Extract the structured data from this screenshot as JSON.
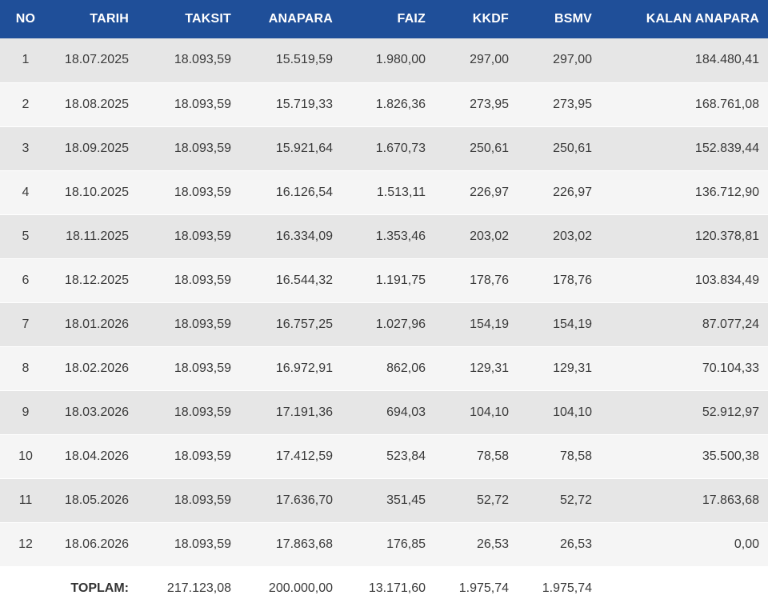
{
  "headers": {
    "no": "NO",
    "tarih": "TARIH",
    "taksit": "TAKSIT",
    "anapara": "ANAPARA",
    "faiz": "FAIZ",
    "kkdf": "KKDF",
    "bsmv": "BSMV",
    "kalan": "KALAN ANAPARA"
  },
  "rows": [
    {
      "no": "1",
      "tarih": "18.07.2025",
      "taksit": "18.093,59",
      "anapara": "15.519,59",
      "faiz": "1.980,00",
      "kkdf": "297,00",
      "bsmv": "297,00",
      "kalan": "184.480,41"
    },
    {
      "no": "2",
      "tarih": "18.08.2025",
      "taksit": "18.093,59",
      "anapara": "15.719,33",
      "faiz": "1.826,36",
      "kkdf": "273,95",
      "bsmv": "273,95",
      "kalan": "168.761,08"
    },
    {
      "no": "3",
      "tarih": "18.09.2025",
      "taksit": "18.093,59",
      "anapara": "15.921,64",
      "faiz": "1.670,73",
      "kkdf": "250,61",
      "bsmv": "250,61",
      "kalan": "152.839,44"
    },
    {
      "no": "4",
      "tarih": "18.10.2025",
      "taksit": "18.093,59",
      "anapara": "16.126,54",
      "faiz": "1.513,11",
      "kkdf": "226,97",
      "bsmv": "226,97",
      "kalan": "136.712,90"
    },
    {
      "no": "5",
      "tarih": "18.11.2025",
      "taksit": "18.093,59",
      "anapara": "16.334,09",
      "faiz": "1.353,46",
      "kkdf": "203,02",
      "bsmv": "203,02",
      "kalan": "120.378,81"
    },
    {
      "no": "6",
      "tarih": "18.12.2025",
      "taksit": "18.093,59",
      "anapara": "16.544,32",
      "faiz": "1.191,75",
      "kkdf": "178,76",
      "bsmv": "178,76",
      "kalan": "103.834,49"
    },
    {
      "no": "7",
      "tarih": "18.01.2026",
      "taksit": "18.093,59",
      "anapara": "16.757,25",
      "faiz": "1.027,96",
      "kkdf": "154,19",
      "bsmv": "154,19",
      "kalan": "87.077,24"
    },
    {
      "no": "8",
      "tarih": "18.02.2026",
      "taksit": "18.093,59",
      "anapara": "16.972,91",
      "faiz": "862,06",
      "kkdf": "129,31",
      "bsmv": "129,31",
      "kalan": "70.104,33"
    },
    {
      "no": "9",
      "tarih": "18.03.2026",
      "taksit": "18.093,59",
      "anapara": "17.191,36",
      "faiz": "694,03",
      "kkdf": "104,10",
      "bsmv": "104,10",
      "kalan": "52.912,97"
    },
    {
      "no": "10",
      "tarih": "18.04.2026",
      "taksit": "18.093,59",
      "anapara": "17.412,59",
      "faiz": "523,84",
      "kkdf": "78,58",
      "bsmv": "78,58",
      "kalan": "35.500,38"
    },
    {
      "no": "11",
      "tarih": "18.05.2026",
      "taksit": "18.093,59",
      "anapara": "17.636,70",
      "faiz": "351,45",
      "kkdf": "52,72",
      "bsmv": "52,72",
      "kalan": "17.863,68"
    },
    {
      "no": "12",
      "tarih": "18.06.2026",
      "taksit": "18.093,59",
      "anapara": "17.863,68",
      "faiz": "176,85",
      "kkdf": "26,53",
      "bsmv": "26,53",
      "kalan": "0,00"
    }
  ],
  "totals": {
    "label": "TOPLAM:",
    "taksit": "217.123,08",
    "anapara": "200.000,00",
    "faiz": "13.171,60",
    "kkdf": "1.975,74",
    "bsmv": "1.975,74"
  },
  "colors": {
    "header_bg": "#1f4f99",
    "row_odd": "#e6e6e6",
    "row_even": "#f5f5f5"
  }
}
